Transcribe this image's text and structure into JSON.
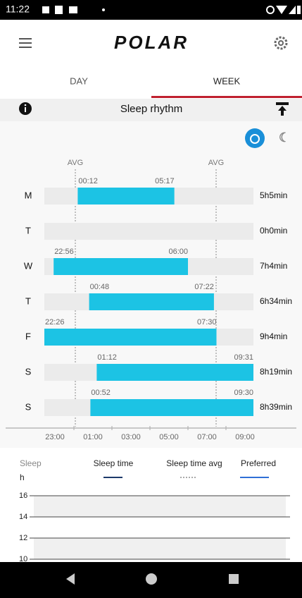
{
  "status_bar": {
    "time": "11:22"
  },
  "app_bar": {
    "logo": "POLAR"
  },
  "tabs": [
    "DAY",
    "WEEK"
  ],
  "section": {
    "title": "Sleep rhythm"
  },
  "rhythm": {
    "avg_labels": [
      "AVG",
      "AVG"
    ],
    "rows": [
      {
        "day": "M",
        "start": "00:12",
        "end": "05:17",
        "duration": "5h5min"
      },
      {
        "day": "T",
        "start": null,
        "end": null,
        "duration": "0h0min"
      },
      {
        "day": "W",
        "start": "22:56",
        "end": "06:00",
        "duration": "7h4min"
      },
      {
        "day": "T",
        "start": "00:48",
        "end": "07:22",
        "duration": "6h34min"
      },
      {
        "day": "F",
        "start": "22:26",
        "end": "07:30",
        "duration": "9h4min"
      },
      {
        "day": "S",
        "start": "01:12",
        "end": "09:31",
        "duration": "8h19min"
      },
      {
        "day": "S",
        "start": "00:52",
        "end": "09:30",
        "duration": "8h39min"
      }
    ],
    "axis": [
      "23:00",
      "01:00",
      "03:00",
      "05:00",
      "07:00",
      "09:00"
    ]
  },
  "graph": {
    "label": "Sleep",
    "unit": "h",
    "legend": [
      "Sleep time",
      "Sleep time avg",
      "Preferred"
    ],
    "yticks": [
      16,
      14,
      12,
      10
    ]
  }
}
